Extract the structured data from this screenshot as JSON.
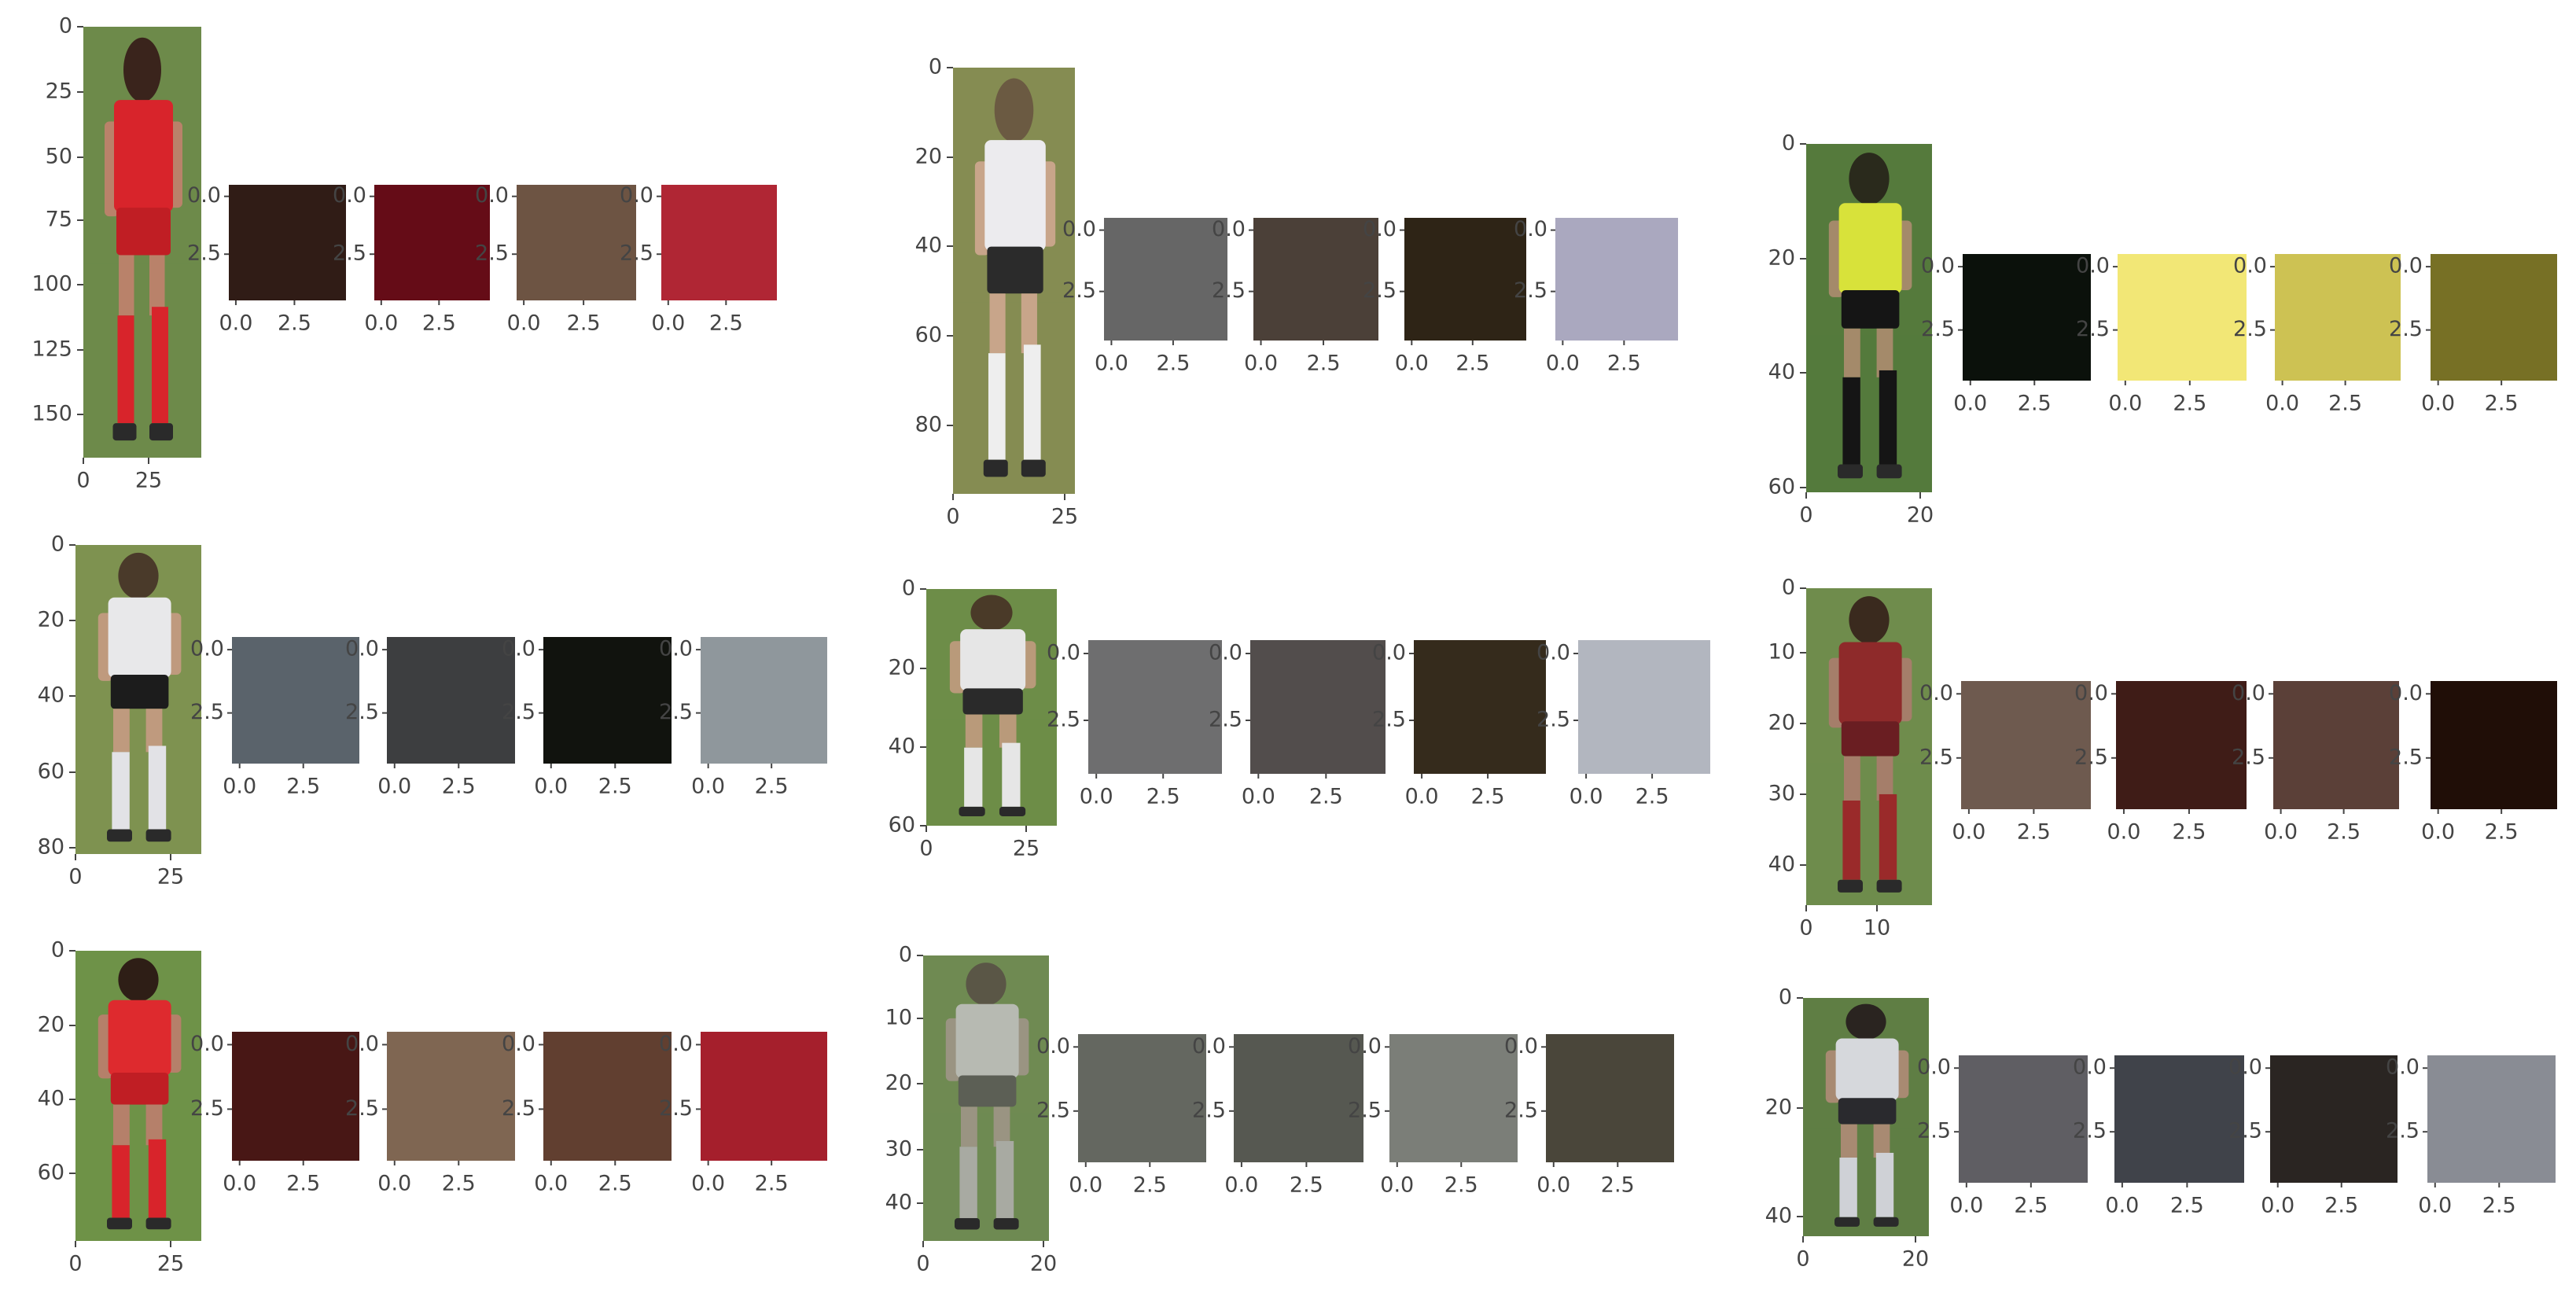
{
  "chart_data": [
    {
      "type": "image_panel_grid",
      "panel": "r1c1",
      "crop": {
        "x_ticks": [
          "0",
          "25"
        ],
        "y_ticks": [
          "0",
          "25",
          "50",
          "75",
          "100",
          "125",
          "150"
        ],
        "jersey": "#d8242b",
        "shorts": "#c01e24",
        "field": "#6d8a4a",
        "hair": "#3a241c",
        "skin": "#b9826a",
        "socks": "#d8242b"
      },
      "swatches": [
        {
          "color": "#301c16",
          "x_ticks": [
            "0.0",
            "2.5"
          ],
          "y_ticks": [
            "0.0",
            "2.5"
          ]
        },
        {
          "color": "#650c17",
          "x_ticks": [
            "0.0",
            "2.5"
          ],
          "y_ticks": [
            "0.0",
            "2.5"
          ]
        },
        {
          "color": "#6d5443",
          "x_ticks": [
            "0.0",
            "2.5"
          ],
          "y_ticks": [
            "0.0",
            "2.5"
          ]
        },
        {
          "color": "#b02634",
          "x_ticks": [
            "0.0",
            "2.5"
          ],
          "y_ticks": [
            "0.0",
            "2.5"
          ]
        }
      ]
    },
    {
      "type": "image_panel_grid",
      "panel": "r1c2",
      "crop": {
        "x_ticks": [
          "0",
          "25"
        ],
        "y_ticks": [
          "0",
          "20",
          "40",
          "60",
          "80"
        ],
        "jersey": "#ecebee",
        "shorts": "#2b2b2b",
        "field": "#858c52",
        "hair": "#6b5a42",
        "skin": "#c8a58a",
        "socks": "#eeeeee"
      },
      "swatches": [
        {
          "color": "#666666",
          "x_ticks": [
            "0.0",
            "2.5"
          ],
          "y_ticks": [
            "0.0",
            "2.5"
          ]
        },
        {
          "color": "#4b4038",
          "x_ticks": [
            "0.0",
            "2.5"
          ],
          "y_ticks": [
            "0.0",
            "2.5"
          ]
        },
        {
          "color": "#2e2416",
          "x_ticks": [
            "0.0",
            "2.5"
          ],
          "y_ticks": [
            "0.0",
            "2.5"
          ]
        },
        {
          "color": "#aaa8bf",
          "x_ticks": [
            "0.0",
            "2.5"
          ],
          "y_ticks": [
            "0.0",
            "2.5"
          ]
        }
      ]
    },
    {
      "type": "image_panel_grid",
      "panel": "r1c3",
      "crop": {
        "x_ticks": [
          "0",
          "20"
        ],
        "y_ticks": [
          "0",
          "20",
          "40",
          "60"
        ],
        "jersey": "#d8e23a",
        "shorts": "#151515",
        "field": "#557a3c",
        "hair": "#2a2a1c",
        "skin": "#a48a6a",
        "socks": "#151515"
      },
      "swatches": [
        {
          "color": "#0b110b",
          "x_ticks": [
            "0.0",
            "2.5"
          ],
          "y_ticks": [
            "0.0",
            "2.5"
          ]
        },
        {
          "color": "#f2e776",
          "x_ticks": [
            "0.0",
            "2.5"
          ],
          "y_ticks": [
            "0.0",
            "2.5"
          ]
        },
        {
          "color": "#cdc253",
          "x_ticks": [
            "0.0",
            "2.5"
          ],
          "y_ticks": [
            "0.0",
            "2.5"
          ]
        },
        {
          "color": "#777025",
          "x_ticks": [
            "0.0",
            "2.5"
          ],
          "y_ticks": [
            "0.0",
            "2.5"
          ]
        }
      ]
    },
    {
      "type": "image_panel_grid",
      "panel": "r2c1",
      "crop": {
        "x_ticks": [
          "0",
          "25"
        ],
        "y_ticks": [
          "0",
          "20",
          "40",
          "60",
          "80"
        ],
        "jersey": "#e8e8ea",
        "shorts": "#1c1c1c",
        "field": "#7e9250",
        "hair": "#4a3a2a",
        "skin": "#bf9a7e",
        "socks": "#e2e2e6"
      },
      "swatches": [
        {
          "color": "#5a636b",
          "x_ticks": [
            "0.0",
            "2.5"
          ],
          "y_ticks": [
            "0.0",
            "2.5"
          ]
        },
        {
          "color": "#3d3e40",
          "x_ticks": [
            "0.0",
            "2.5"
          ],
          "y_ticks": [
            "0.0",
            "2.5"
          ]
        },
        {
          "color": "#11130e",
          "x_ticks": [
            "0.0",
            "2.5"
          ],
          "y_ticks": [
            "0.0",
            "2.5"
          ]
        },
        {
          "color": "#8f979c",
          "x_ticks": [
            "0.0",
            "2.5"
          ],
          "y_ticks": [
            "0.0",
            "2.5"
          ]
        }
      ]
    },
    {
      "type": "image_panel_grid",
      "panel": "r2c2",
      "crop": {
        "x_ticks": [
          "0",
          "25"
        ],
        "y_ticks": [
          "0",
          "20",
          "40",
          "60"
        ],
        "jersey": "#e6e6e6",
        "shorts": "#2a2a2a",
        "field": "#6d8d48",
        "hair": "#4a3a28",
        "skin": "#b99a7a",
        "socks": "#e6e6e6"
      },
      "swatches": [
        {
          "color": "#6e6e6f",
          "x_ticks": [
            "0.0",
            "2.5"
          ],
          "y_ticks": [
            "0.0",
            "2.5"
          ]
        },
        {
          "color": "#524d4c",
          "x_ticks": [
            "0.0",
            "2.5"
          ],
          "y_ticks": [
            "0.0",
            "2.5"
          ]
        },
        {
          "color": "#352b1c",
          "x_ticks": [
            "0.0",
            "2.5"
          ],
          "y_ticks": [
            "0.0",
            "2.5"
          ]
        },
        {
          "color": "#b2b6bf",
          "x_ticks": [
            "0.0",
            "2.5"
          ],
          "y_ticks": [
            "0.0",
            "2.5"
          ]
        }
      ]
    },
    {
      "type": "image_panel_grid",
      "panel": "r2c3",
      "crop": {
        "x_ticks": [
          "0",
          "10"
        ],
        "y_ticks": [
          "0",
          "10",
          "20",
          "30",
          "40"
        ],
        "jersey": "#8e2a2a",
        "shorts": "#6a1e22",
        "field": "#6f8c4c",
        "hair": "#3a2a1e",
        "skin": "#a57e6a",
        "socks": "#9a2a2a"
      },
      "swatches": [
        {
          "color": "#6e5a4f",
          "x_ticks": [
            "0.0",
            "2.5"
          ],
          "y_ticks": [
            "0.0",
            "2.5"
          ]
        },
        {
          "color": "#3f1c17",
          "x_ticks": [
            "0.0",
            "2.5"
          ],
          "y_ticks": [
            "0.0",
            "2.5"
          ]
        },
        {
          "color": "#5b4038",
          "x_ticks": [
            "0.0",
            "2.5"
          ],
          "y_ticks": [
            "0.0",
            "2.5"
          ]
        },
        {
          "color": "#200e07",
          "x_ticks": [
            "0.0",
            "2.5"
          ],
          "y_ticks": [
            "0.0",
            "2.5"
          ]
        }
      ]
    },
    {
      "type": "image_panel_grid",
      "panel": "r3c1",
      "crop": {
        "x_ticks": [
          "0",
          "25"
        ],
        "y_ticks": [
          "0",
          "20",
          "40",
          "60"
        ],
        "jersey": "#de2a2e",
        "shorts": "#c01e24",
        "field": "#6e9248",
        "hair": "#2e1e16",
        "skin": "#b5806a",
        "socks": "#d8242b"
      },
      "swatches": [
        {
          "color": "#481715",
          "x_ticks": [
            "0.0",
            "2.5"
          ],
          "y_ticks": [
            "0.0",
            "2.5"
          ]
        },
        {
          "color": "#7f6652",
          "x_ticks": [
            "0.0",
            "2.5"
          ],
          "y_ticks": [
            "0.0",
            "2.5"
          ]
        },
        {
          "color": "#613f30",
          "x_ticks": [
            "0.0",
            "2.5"
          ],
          "y_ticks": [
            "0.0",
            "2.5"
          ]
        },
        {
          "color": "#a51f2c",
          "x_ticks": [
            "0.0",
            "2.5"
          ],
          "y_ticks": [
            "0.0",
            "2.5"
          ]
        }
      ]
    },
    {
      "type": "image_panel_grid",
      "panel": "r3c2",
      "crop": {
        "x_ticks": [
          "0",
          "20"
        ],
        "y_ticks": [
          "0",
          "10",
          "20",
          "30",
          "40"
        ],
        "jersey": "#b7bab2",
        "shorts": "#5c5f55",
        "field": "#6f8a52",
        "hair": "#5a5646",
        "skin": "#9a9482",
        "socks": "#a8aaa2"
      },
      "swatches": [
        {
          "color": "#646760",
          "x_ticks": [
            "0.0",
            "2.5"
          ],
          "y_ticks": [
            "0.0",
            "2.5"
          ]
        },
        {
          "color": "#565851",
          "x_ticks": [
            "0.0",
            "2.5"
          ],
          "y_ticks": [
            "0.0",
            "2.5"
          ]
        },
        {
          "color": "#7b7e78",
          "x_ticks": [
            "0.0",
            "2.5"
          ],
          "y_ticks": [
            "0.0",
            "2.5"
          ]
        },
        {
          "color": "#4a463a",
          "x_ticks": [
            "0.0",
            "2.5"
          ],
          "y_ticks": [
            "0.0",
            "2.5"
          ]
        }
      ]
    },
    {
      "type": "image_panel_grid",
      "panel": "r3c3",
      "crop": {
        "x_ticks": [
          "0",
          "20"
        ],
        "y_ticks": [
          "0",
          "20",
          "40"
        ],
        "jersey": "#d6d8dc",
        "shorts": "#2a2a2e",
        "field": "#5f7e44",
        "hair": "#2a2420",
        "skin": "#a88a72",
        "socks": "#cfd1d6"
      },
      "swatches": [
        {
          "color": "#5f5e63",
          "x_ticks": [
            "0.0",
            "2.5"
          ],
          "y_ticks": [
            "0.0",
            "2.5"
          ]
        },
        {
          "color": "#40434a",
          "x_ticks": [
            "0.0",
            "2.5"
          ],
          "y_ticks": [
            "0.0",
            "2.5"
          ]
        },
        {
          "color": "#2a2522",
          "x_ticks": [
            "0.0",
            "2.5"
          ],
          "y_ticks": [
            "0.0",
            "2.5"
          ]
        },
        {
          "color": "#898c94",
          "x_ticks": [
            "0.0",
            "2.5"
          ],
          "y_ticks": [
            "0.0",
            "2.5"
          ]
        }
      ]
    }
  ]
}
